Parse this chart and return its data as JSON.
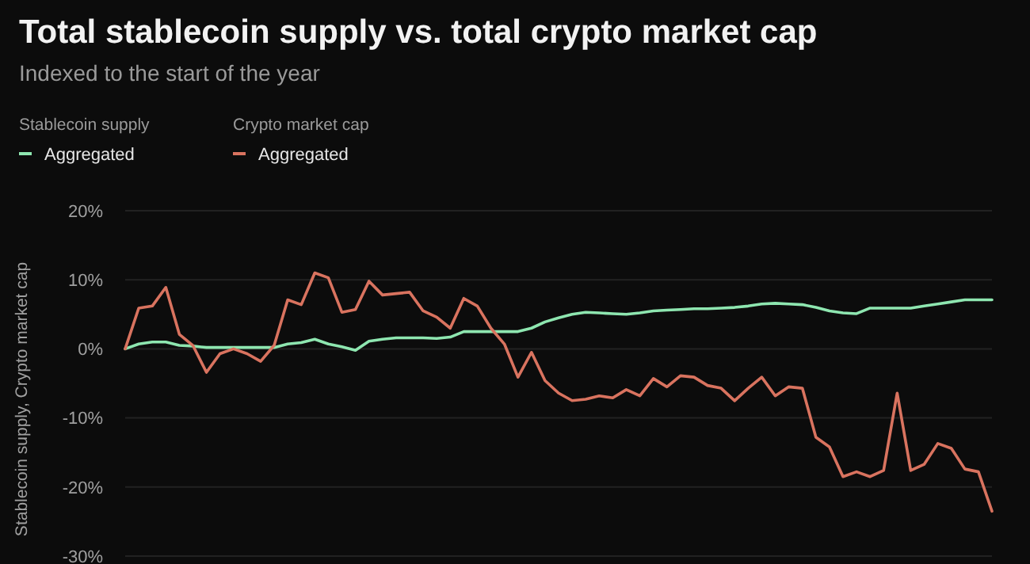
{
  "chart_data": {
    "type": "line",
    "title": "Total stablecoin supply vs. total crypto market cap",
    "subtitle": "Indexed to the start of the year",
    "ylabel": "Stablecoin supply, Crypto market cap",
    "annotations": [
      "Stablecoin supply",
      "Crypto market cap"
    ],
    "categories": [
      null,
      null,
      null,
      null,
      null,
      null,
      null,
      null,
      null,
      null,
      null,
      null,
      null,
      null,
      null,
      null,
      null,
      null,
      null,
      null,
      null,
      null,
      null,
      null,
      null,
      null,
      null,
      null,
      null,
      null,
      null,
      null,
      null,
      null,
      null,
      null,
      null,
      null,
      null,
      null,
      null,
      null,
      null,
      null,
      null,
      null,
      null,
      null,
      null,
      null,
      null,
      null,
      null,
      null,
      null,
      null,
      null,
      null,
      null,
      null,
      null,
      null,
      null,
      null,
      null
    ],
    "ylim": [
      -30,
      20
    ],
    "yticks": [
      {
        "value": 20,
        "label": "20%"
      },
      {
        "value": 10,
        "label": "10%"
      },
      {
        "value": 0,
        "label": "0%"
      },
      {
        "value": -10,
        "label": "-10%"
      },
      {
        "value": -20,
        "label": "-20%"
      },
      {
        "value": -30,
        "label": "-30%"
      }
    ],
    "grid": "y",
    "legend": "top left",
    "tick_labels": "y",
    "marker": "none",
    "line_style": "solid",
    "series": [
      {
        "name": "Aggregated",
        "color": "#8ee6b0",
        "values": [
          0,
          0.7,
          1,
          1,
          0.5,
          0.4,
          0.2,
          0.2,
          0.2,
          0.2,
          0.2,
          0.2,
          0.7,
          0.9,
          1.4,
          0.7,
          0.3,
          -0.2,
          1.1,
          1.4,
          1.6,
          1.6,
          1.6,
          1.5,
          1.7,
          2.5,
          2.5,
          2.5,
          2.5,
          2.5,
          3,
          3.9,
          4.5,
          5,
          5.3,
          5.2,
          5.1,
          5,
          5.2,
          5.5,
          5.6,
          5.7,
          5.8,
          5.8,
          5.9,
          6,
          6.2,
          6.5,
          6.6,
          6.5,
          6.4,
          6,
          5.5,
          5.2,
          5.1,
          5.9,
          5.9,
          5.9,
          5.9,
          6.2,
          6.5,
          6.8,
          7.1,
          7.1,
          7.1
        ]
      },
      {
        "name": "Aggregated",
        "color": "#d9735f",
        "values": [
          0,
          5.9,
          6.2,
          8.9,
          2.1,
          0.5,
          -3.4,
          -0.7,
          0,
          -0.7,
          -1.8,
          0.5,
          7.1,
          6.4,
          11,
          10.3,
          5.3,
          5.7,
          9.8,
          7.8,
          8,
          8.2,
          5.5,
          4.6,
          3,
          7.3,
          6.2,
          3,
          0.7,
          -4.1,
          -0.5,
          -4.6,
          -6.4,
          -7.5,
          -7.3,
          -6.8,
          -7.1,
          -5.9,
          -6.8,
          -4.3,
          -5.5,
          -3.9,
          -4.1,
          -5.3,
          -5.7,
          -7.5,
          -5.7,
          -4.1,
          -6.8,
          -5.5,
          -5.7,
          -12.8,
          -14.2,
          -18.5,
          -17.8,
          -18.5,
          -17.6,
          -6.4,
          -17.6,
          -16.7,
          -13.7,
          -14.4,
          -17.4,
          -17.8,
          -23.5
        ]
      }
    ]
  }
}
